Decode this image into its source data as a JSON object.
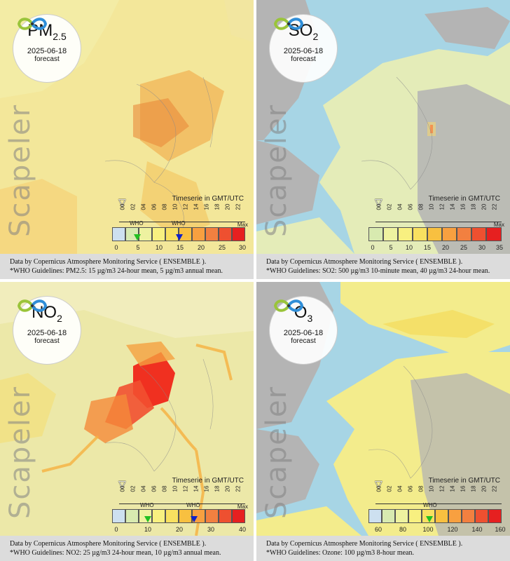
{
  "panels": [
    {
      "pollutant": "PM",
      "pollutant_sub": "2.5",
      "date": "2025-06-18",
      "forecast_label": "forecast",
      "brand": "Scapeler",
      "timeserie_label": "Timeserie in GMT/UTC",
      "hours": [
        "00",
        "02",
        "04",
        "06",
        "08",
        "10",
        "12",
        "14",
        "16",
        "18",
        "20",
        "22"
      ],
      "legend_ticks": [
        "0",
        "5",
        "10",
        "15",
        "20",
        "25",
        "30"
      ],
      "legend_max": "Max",
      "who_labels": [
        "WHO",
        "WHO"
      ],
      "legend_colors": [
        "#cde0f0",
        "#d8eab0",
        "#eef2a0",
        "#f8f080",
        "#f8e060",
        "#f8c040",
        "#f8a040",
        "#f28040",
        "#ee5030",
        "#e62020"
      ],
      "source": "Data by Copernicus Atmosphere Monitoring Service ( ENSEMBLE ).",
      "guideline": "*WHO Guidelines: PM2.5: 15 µg/m3 24-hour mean, 5 µg/m3 annual mean.",
      "field_color": "#f3e79a",
      "hot_color": "#f0a23e"
    },
    {
      "pollutant": "SO",
      "pollutant_sub": "2",
      "date": "2025-06-18",
      "forecast_label": "forecast",
      "brand": "Scapeler",
      "timeserie_label": "Timeserie in GMT/UTC",
      "hours": [
        "00",
        "02",
        "04",
        "06",
        "08",
        "10",
        "12",
        "14",
        "16",
        "18",
        "20",
        "22"
      ],
      "legend_ticks": [
        "0",
        "5",
        "10",
        "15",
        "20",
        "25",
        "30",
        "35"
      ],
      "legend_max": "Max",
      "who_labels": [],
      "legend_colors": [
        "#d8eab0",
        "#eef2a0",
        "#f8f080",
        "#f8e060",
        "#f8c040",
        "#f8a040",
        "#f28040",
        "#ee5030",
        "#e62020"
      ],
      "source": "Data by Copernicus Atmosphere Monitoring Service ( ENSEMBLE ).",
      "guideline": "*WHO Guidelines: SO2: 500 µg/m3 10-minute mean, 40 µg/m3 24-hour mean.",
      "field_color": "#e4ecb8",
      "hot_color": "#f5d673"
    },
    {
      "pollutant": "NO",
      "pollutant_sub": "2",
      "date": "2025-06-18",
      "forecast_label": "forecast",
      "brand": "Scapeler",
      "timeserie_label": "Timeserie in GMT/UTC",
      "hours": [
        "00",
        "02",
        "04",
        "06",
        "08",
        "10",
        "12",
        "14",
        "16",
        "18",
        "20",
        "22"
      ],
      "legend_ticks": [
        "0",
        "10",
        "20",
        "30",
        "40"
      ],
      "legend_max": "Max",
      "who_labels": [
        "WHO",
        "WHO"
      ],
      "legend_colors": [
        "#cde0f0",
        "#d8eab0",
        "#eef2a0",
        "#f8f080",
        "#f8e060",
        "#f8c040",
        "#f8a040",
        "#f28040",
        "#ee5030",
        "#e62020"
      ],
      "source": "Data by Copernicus Atmosphere Monitoring Service ( ENSEMBLE ).",
      "guideline": "*WHO Guidelines: NO2: 25 µg/m3 24-hour mean, 10 µg/m3 annual mean.",
      "field_color": "#ece8a8",
      "hot_color": "#f03020"
    },
    {
      "pollutant": "O",
      "pollutant_sub": "3",
      "date": "2025-06-18",
      "forecast_label": "forecast",
      "brand": "Scapeler",
      "timeserie_label": "Timeserie in GMT/UTC",
      "hours": [
        "00",
        "02",
        "04",
        "06",
        "08",
        "10",
        "12",
        "14",
        "16",
        "18",
        "20",
        "22"
      ],
      "legend_ticks": [
        "60",
        "80",
        "100",
        "120",
        "140",
        "160"
      ],
      "legend_max": "",
      "who_labels": [
        "WHO"
      ],
      "legend_colors": [
        "#cde0f0",
        "#d8eab0",
        "#eef2a0",
        "#f8f080",
        "#f8e060",
        "#f8c040",
        "#f8a040",
        "#f28040",
        "#ee5030",
        "#e62020"
      ],
      "source": "Data by Copernicus Atmosphere Monitoring Service ( ENSEMBLE ).",
      "guideline": "*WHO Guidelines: Ozone: 100 µg/m3 8-hour mean.",
      "field_color": "#f3ec8c",
      "hot_color": "#f4dc5a"
    }
  ],
  "colors": {
    "sea": "#a7d5e5",
    "land_gray": "#b4b4b4",
    "footer_bg": "#dcdcdc",
    "who_green": "#22c022",
    "who_blue": "#1022c8",
    "logo_green": "#9ac43a",
    "logo_blue": "#2f8ed8"
  }
}
